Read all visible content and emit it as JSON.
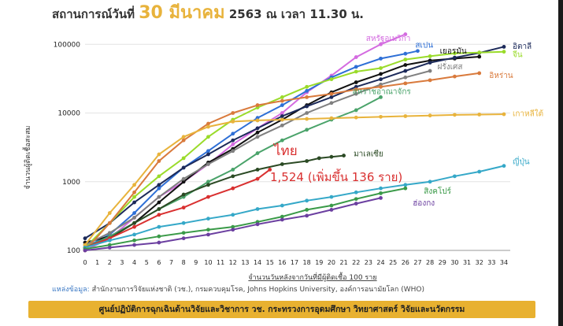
{
  "title": {
    "prefix": "สถานการณ์วันที่",
    "date": "30 มีนาคม",
    "suffix": "2563 ณ เวลา 11.30 น."
  },
  "source": {
    "label": "แหล่งข้อมูล:",
    "text": "สำนักงานการวิจัยแห่งชาติ (วช.), กรมควบคุมโรค, Johns Hopkins University, องค์การอนามัยโลก (WHO)"
  },
  "footer": "ศูนย์ปฏิบัติการฉุกเฉินด้านวิจัยและวิชาการ   วช.   กระทรวงการอุดมศึกษา วิทยาศาสตร์ วิจัยและนวัตกรรม",
  "chart_data": {
    "type": "line",
    "yscale": "log",
    "ylim": [
      100,
      200000
    ],
    "xlim": [
      0,
      34
    ],
    "ylabel": "จำนวนผู้ติดเชื้อสะสม",
    "xlabel": "จำนวนวันหลังจากวันที่มีผู้ติดเชื้อ 100 ราย",
    "yticks": [
      100,
      1000,
      10000,
      100000
    ],
    "ytick_labels": [
      "100",
      "1000",
      "10000",
      "100000"
    ],
    "xticks": [
      0,
      1,
      2,
      3,
      4,
      5,
      6,
      7,
      8,
      9,
      10,
      11,
      12,
      13,
      14,
      15,
      16,
      17,
      18,
      19,
      20,
      21,
      22,
      23,
      24,
      25,
      26,
      27,
      28,
      29,
      30,
      31,
      32,
      33,
      34
    ],
    "thailand_annotation": {
      "name": "ไทย",
      "text": "1,524 (เพิ่มขึ้น 136 ราย)"
    },
    "series": [
      {
        "name": "สหรัฐอเมริกา",
        "color": "#d46be0",
        "label_x": 22.8,
        "label_y": 125000,
        "x": [
          0,
          2,
          4,
          6,
          8,
          10,
          12,
          14,
          16,
          18,
          20,
          22,
          24,
          26
        ],
        "y": [
          100,
          150,
          300,
          600,
          1000,
          1800,
          3500,
          6000,
          10000,
          20000,
          35000,
          65000,
          100000,
          140000
        ]
      },
      {
        "name": "สเปน",
        "color": "#2e6fd6",
        "label_x": 26.8,
        "label_y": 100000,
        "x": [
          0,
          2,
          4,
          6,
          8,
          10,
          12,
          14,
          16,
          18,
          20,
          22,
          24,
          26,
          27
        ],
        "y": [
          110,
          170,
          350,
          800,
          1600,
          2800,
          5000,
          8500,
          13000,
          21000,
          33000,
          47000,
          62000,
          73000,
          80000
        ]
      },
      {
        "name": "เยอรมัน",
        "color": "#111111",
        "label_x": 28.8,
        "label_y": 82000,
        "x": [
          0,
          2,
          4,
          6,
          8,
          10,
          12,
          14,
          16,
          18,
          20,
          22,
          24,
          26,
          28,
          30,
          32
        ],
        "y": [
          130,
          160,
          250,
          500,
          1000,
          1900,
          3000,
          5200,
          8000,
          13000,
          20000,
          28000,
          37000,
          50000,
          58000,
          62000,
          66000
        ]
      },
      {
        "name": "อิตาลี",
        "color": "#1c2a5a",
        "label_x": 34.7,
        "label_y": 95000,
        "x": [
          0,
          2,
          4,
          6,
          8,
          10,
          12,
          14,
          16,
          18,
          20,
          22,
          24,
          26,
          28,
          30,
          32,
          34
        ],
        "y": [
          150,
          250,
          500,
          900,
          1600,
          2500,
          4000,
          6000,
          9000,
          12500,
          17000,
          24000,
          31000,
          41000,
          54000,
          64000,
          75000,
          92000
        ]
      },
      {
        "name": "จีน",
        "color": "#9adb2a",
        "label_x": 34.7,
        "label_y": 72000,
        "x": [
          0,
          2,
          4,
          6,
          8,
          10,
          12,
          14,
          16,
          18,
          20,
          22,
          24,
          26,
          28,
          30,
          32,
          34
        ],
        "y": [
          110,
          250,
          600,
          1200,
          2200,
          4500,
          8000,
          12000,
          17000,
          24000,
          31000,
          40000,
          45000,
          60000,
          67000,
          74000,
          76000,
          78000
        ]
      },
      {
        "name": "ฝรั่งเศส",
        "color": "#808080",
        "label_x": 28.6,
        "label_y": 48000,
        "x": [
          0,
          2,
          4,
          6,
          8,
          10,
          12,
          14,
          16,
          18,
          20,
          22,
          24,
          26,
          28
        ],
        "y": [
          120,
          180,
          300,
          600,
          1100,
          1800,
          2800,
          4500,
          6600,
          10000,
          14000,
          19000,
          26000,
          33000,
          41000
        ]
      },
      {
        "name": "อิหร่าน",
        "color": "#d97a3c",
        "label_x": 32.8,
        "label_y": 36000,
        "x": [
          0,
          2,
          4,
          6,
          8,
          10,
          12,
          14,
          16,
          18,
          20,
          22,
          24,
          26,
          28,
          30,
          32
        ],
        "y": [
          100,
          250,
          700,
          2000,
          4000,
          7000,
          10000,
          13000,
          15000,
          17000,
          19000,
          22000,
          24000,
          27000,
          30000,
          34000,
          38000
        ]
      },
      {
        "name": "สหราชอาณาจักร",
        "color": "#4aa36a",
        "label_x": 21.7,
        "label_y": 21000,
        "x": [
          0,
          2,
          4,
          6,
          8,
          10,
          12,
          14,
          16,
          18,
          20,
          22,
          24
        ],
        "y": [
          110,
          160,
          250,
          400,
          600,
          1000,
          1500,
          2600,
          4000,
          5700,
          8000,
          11000,
          17000
        ]
      },
      {
        "name": "เกาหลีใต้",
        "color": "#e8b33c",
        "label_x": 34.7,
        "label_y": 10000,
        "x": [
          0,
          2,
          4,
          6,
          8,
          10,
          12,
          14,
          16,
          18,
          20,
          22,
          24,
          26,
          28,
          30,
          32,
          34
        ],
        "y": [
          120,
          350,
          900,
          2500,
          4500,
          6300,
          7500,
          7800,
          8000,
          8200,
          8400,
          8600,
          8800,
          9000,
          9200,
          9400,
          9500,
          9600
        ]
      },
      {
        "name": "มาเลเซีย",
        "color": "#2b4a24",
        "label_x": 21.8,
        "label_y": 2600,
        "x": [
          0,
          2,
          4,
          6,
          8,
          10,
          12,
          14,
          16,
          18,
          19,
          20,
          21
        ],
        "y": [
          110,
          150,
          250,
          400,
          650,
          900,
          1200,
          1500,
          1800,
          2000,
          2200,
          2300,
          2400
        ]
      },
      {
        "name": "ไทย",
        "color": "#d93030",
        "label_x": 16.5,
        "label_y": 3300,
        "x": [
          0,
          2,
          4,
          6,
          8,
          10,
          12,
          14,
          15
        ],
        "y": [
          110,
          150,
          220,
          330,
          420,
          600,
          800,
          1100,
          1500
        ]
      },
      {
        "name": "ญี่ปุ่น",
        "color": "#35a8c8",
        "label_x": 34.7,
        "label_y": 2000,
        "x": [
          0,
          2,
          4,
          6,
          8,
          10,
          12,
          14,
          16,
          18,
          20,
          22,
          24,
          26,
          28,
          30,
          32,
          34
        ],
        "y": [
          110,
          140,
          170,
          220,
          250,
          290,
          330,
          400,
          450,
          530,
          600,
          700,
          800,
          900,
          1000,
          1200,
          1400,
          1700
        ]
      },
      {
        "name": "สิงคโปร์",
        "color": "#3a9a48",
        "label_x": 27.5,
        "label_y": 740,
        "x": [
          0,
          2,
          4,
          6,
          8,
          10,
          12,
          14,
          16,
          18,
          20,
          22,
          24,
          26
        ],
        "y": [
          105,
          120,
          140,
          160,
          180,
          200,
          220,
          260,
          310,
          390,
          450,
          560,
          680,
          800
        ]
      },
      {
        "name": "ฮ่องกง",
        "color": "#6b3fa0",
        "label_x": 26.6,
        "label_y": 500,
        "x": [
          0,
          2,
          4,
          6,
          8,
          10,
          12,
          14,
          16,
          18,
          20,
          22,
          24
        ],
        "y": [
          100,
          110,
          120,
          130,
          150,
          170,
          200,
          240,
          280,
          320,
          390,
          480,
          580
        ]
      }
    ]
  }
}
